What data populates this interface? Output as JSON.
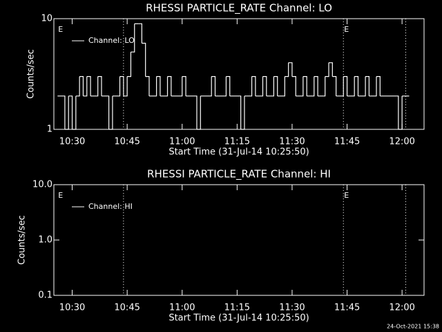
{
  "chart_data": [
    {
      "type": "line",
      "title": "RHESSI PARTICLE_RATE Channel: LO",
      "xlabel": "Start Time (31-Jul-14 10:25:50)",
      "ylabel": "Counts/sec",
      "log_y": true,
      "xlim": [
        "10:25",
        "12:06"
      ],
      "ylim": [
        1,
        10
      ],
      "xticks": [
        "10:30",
        "10:45",
        "11:00",
        "11:15",
        "11:30",
        "11:45",
        "12:00"
      ],
      "yticks": [
        1,
        10
      ],
      "legend": "upper left",
      "vlines": [
        "10:44",
        "11:44",
        "12:01"
      ],
      "annotations": [
        {
          "text": "E",
          "x": "10:26"
        },
        {
          "text": "E",
          "x": "11:44"
        }
      ],
      "x": [
        "10:26",
        "10:28",
        "10:29",
        "10:30",
        "10:31",
        "10:32",
        "10:33",
        "10:34",
        "10:35",
        "10:37",
        "10:38",
        "10:40",
        "10:41",
        "10:43",
        "10:44",
        "10:45",
        "10:46",
        "10:47",
        "10:48",
        "10:49",
        "10:50",
        "10:51",
        "10:53",
        "10:54",
        "10:56",
        "10:57",
        "11:00",
        "11:01",
        "11:04",
        "11:05",
        "11:08",
        "11:09",
        "11:12",
        "11:13",
        "11:16",
        "11:17",
        "11:19",
        "11:20",
        "11:22",
        "11:23",
        "11:25",
        "11:26",
        "11:28",
        "11:29",
        "11:30",
        "11:31",
        "11:33",
        "11:34",
        "11:36",
        "11:37",
        "11:39",
        "11:40",
        "11:41",
        "11:42",
        "11:44",
        "11:45",
        "11:47",
        "11:48",
        "11:50",
        "11:51",
        "11:53",
        "11:54",
        "11:59",
        "12:00",
        "12:01"
      ],
      "series": [
        {
          "name": "Channel: LO",
          "color": "#ffffff",
          "values": [
            2,
            1,
            2,
            1,
            2,
            3,
            2,
            3,
            2,
            3,
            2,
            1,
            2,
            3,
            2,
            3,
            5,
            9,
            9,
            6,
            3,
            2,
            3,
            2,
            3,
            2,
            3,
            2,
            1,
            2,
            3,
            2,
            3,
            2,
            1,
            2,
            3,
            2,
            3,
            2,
            3,
            2,
            3,
            4,
            3,
            2,
            3,
            2,
            3,
            2,
            3,
            4,
            3,
            2,
            3,
            2,
            3,
            2,
            3,
            2,
            3,
            2,
            1,
            2,
            2
          ]
        }
      ]
    },
    {
      "type": "line",
      "title": "RHESSI PARTICLE_RATE Channel: HI",
      "xlabel": "Start Time (31-Jul-14 10:25:50)",
      "ylabel": "Counts/sec",
      "log_y": true,
      "xlim": [
        "10:25",
        "12:06"
      ],
      "ylim": [
        0.1,
        10
      ],
      "xticks": [
        "10:30",
        "10:45",
        "11:00",
        "11:15",
        "11:30",
        "11:45",
        "12:00"
      ],
      "yticks": [
        0.1,
        {
          "value": 1,
          "label": "1.0"
        },
        {
          "value": 10,
          "label": "10.0"
        }
      ],
      "legend": "upper left",
      "vlines": [
        "10:44",
        "11:44",
        "12:01"
      ],
      "annotations": [
        {
          "text": "E",
          "x": "10:26"
        },
        {
          "text": "E",
          "x": "11:44"
        }
      ],
      "x": [],
      "series": [
        {
          "name": "Channel: HI",
          "color": "#ffffff",
          "values": []
        }
      ]
    }
  ],
  "footer": "24-Oct-2021 15:38"
}
